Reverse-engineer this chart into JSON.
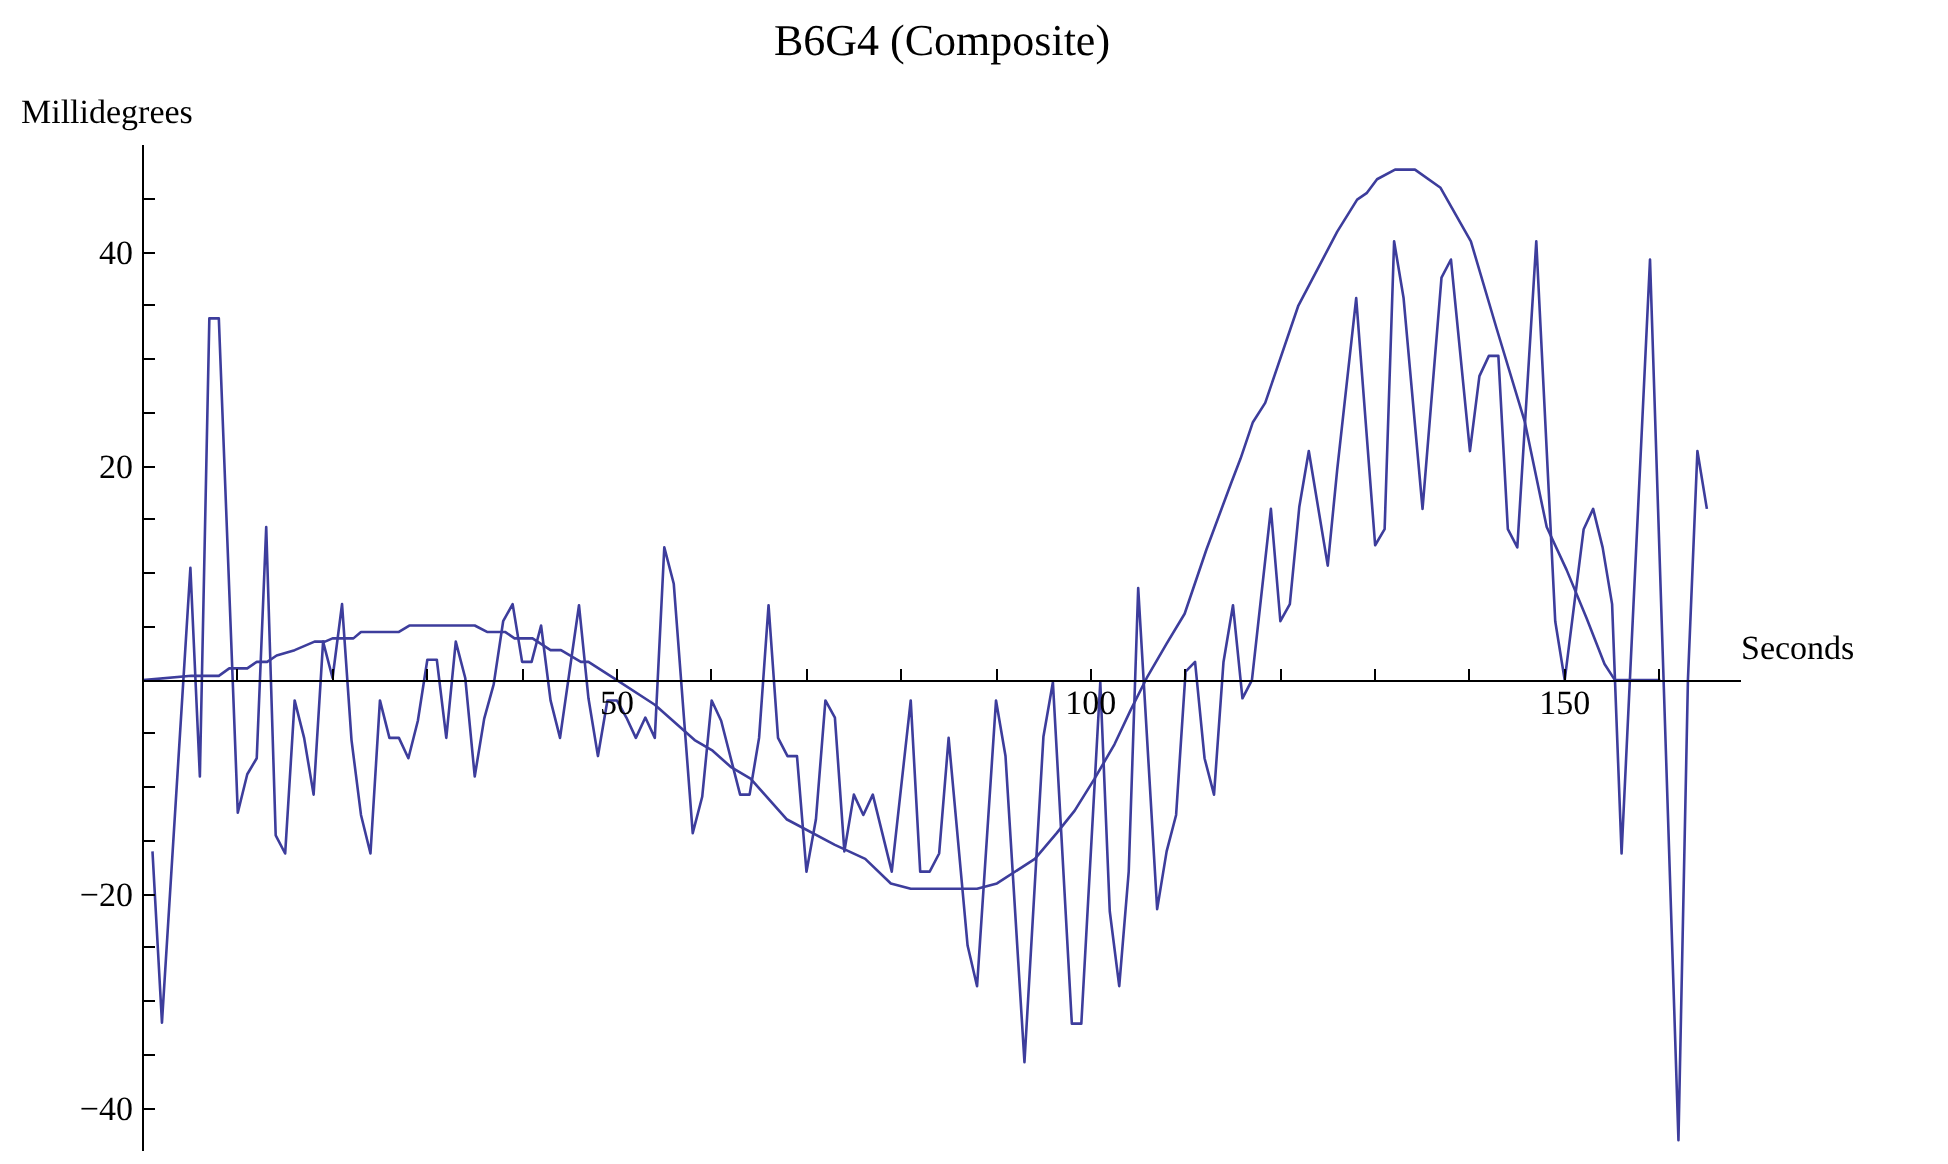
{
  "chart_data": {
    "type": "line",
    "title": "B6G4 (Composite)",
    "xlabel": "Seconds",
    "ylabel": "Millidegrees",
    "xlim": [
      0,
      168.6
    ],
    "ylim": [
      -44,
      50
    ],
    "xticks": [
      {
        "value": 10,
        "label": null
      },
      {
        "value": 20,
        "label": null
      },
      {
        "value": 30,
        "label": null
      },
      {
        "value": 40,
        "label": null
      },
      50,
      {
        "value": 60,
        "label": null
      },
      {
        "value": 70,
        "label": null
      },
      {
        "value": 80,
        "label": null
      },
      {
        "value": 90,
        "label": null
      },
      100,
      {
        "value": 110,
        "label": null
      },
      {
        "value": 120,
        "label": null
      },
      {
        "value": 130,
        "label": null
      },
      {
        "value": 140,
        "label": null
      },
      150,
      {
        "value": 160,
        "label": null
      }
    ],
    "yticks": [
      -40,
      {
        "value": -35,
        "label": null
      },
      {
        "value": -30,
        "label": null
      },
      {
        "value": -25,
        "label": null
      },
      -20,
      {
        "value": -15,
        "label": null
      },
      {
        "value": -10,
        "label": null
      },
      {
        "value": -5,
        "label": null
      },
      {
        "value": 5,
        "label": null
      },
      {
        "value": 10,
        "label": null
      },
      {
        "value": 15,
        "label": null
      },
      20,
      {
        "value": 25,
        "label": null
      },
      {
        "value": 30,
        "label": null
      },
      {
        "value": 35,
        "label": null
      },
      40,
      {
        "value": 45,
        "label": null
      }
    ],
    "grid": false,
    "marker": "none",
    "line_style": "solid",
    "series": [
      {
        "color": "#3d3d9c",
        "x": [
          1,
          2,
          5,
          6,
          7,
          8,
          10,
          11,
          12,
          13,
          14,
          15,
          16,
          17,
          18,
          19,
          20,
          21,
          22,
          23,
          24,
          25,
          26,
          27,
          28,
          29,
          30,
          31,
          32,
          33,
          34,
          35,
          36,
          37,
          38,
          39,
          40,
          41,
          42,
          43,
          44,
          46,
          47,
          48,
          49,
          50,
          51,
          52,
          53,
          54,
          55,
          56,
          58,
          59,
          60,
          61,
          63,
          64,
          65,
          66,
          67,
          68,
          69,
          70,
          71,
          72,
          73,
          74,
          75,
          76,
          77,
          79,
          81,
          82,
          83,
          84,
          85,
          87,
          88,
          90,
          91,
          93,
          95,
          96,
          98,
          99,
          101,
          102,
          103,
          104,
          105,
          107,
          108,
          109,
          110,
          111,
          112,
          113,
          114,
          115,
          116,
          117,
          119,
          120,
          121,
          122,
          123,
          125,
          126,
          128,
          130,
          131,
          132,
          133,
          135,
          137,
          138,
          140,
          141,
          142,
          143,
          144,
          145,
          147,
          149,
          150,
          152,
          153,
          154,
          155,
          156,
          159,
          162,
          163,
          164,
          165
        ],
        "values": [
          -16,
          -32,
          10.5,
          -9,
          33.8,
          33.8,
          -12.4,
          -8.8,
          -7.3,
          14.3,
          -14.5,
          -16.2,
          -1.9,
          -5.4,
          -10.7,
          3.6,
          0.2,
          7.1,
          -5.6,
          -12.6,
          -16.2,
          -1.9,
          -5.4,
          -5.4,
          -7.3,
          -3.8,
          1.9,
          1.9,
          -5.4,
          3.6,
          0.2,
          -9,
          -3.6,
          -0.4,
          5.5,
          7.1,
          1.7,
          1.7,
          5.1,
          -1.9,
          -5.4,
          7,
          -1.7,
          -7.1,
          -1.9,
          -1.9,
          -3.5,
          -5.4,
          -3.5,
          -5.4,
          12.4,
          9,
          -14.3,
          -10.9,
          -1.9,
          -3.8,
          -10.7,
          -10.7,
          -5.4,
          7,
          -5.4,
          -7.1,
          -7.1,
          -17.9,
          -13,
          -1.9,
          -3.5,
          -16,
          -10.7,
          -12.6,
          -10.7,
          -17.9,
          -1.9,
          -17.9,
          -17.9,
          -16.2,
          -5.4,
          -24.8,
          -28.6,
          -1.9,
          -7.1,
          -35.7,
          -5.3,
          -0.2,
          -32.1,
          -32.1,
          -0.2,
          -21.6,
          -28.6,
          -17.9,
          8.6,
          -21.4,
          -16,
          -12.6,
          0.8,
          1.7,
          -7.3,
          -10.7,
          1.7,
          7,
          -1.7,
          0,
          16,
          5.5,
          7.1,
          16.2,
          21.4,
          10.7,
          19.7,
          35.7,
          12.6,
          14.1,
          41,
          35.7,
          16,
          37.6,
          39.3,
          21.4,
          28.4,
          30.3,
          30.3,
          14.1,
          12.4,
          41,
          5.5,
          0,
          14.1,
          16,
          12.4,
          7.1,
          -16.2,
          39.3,
          -43,
          0,
          21.4,
          16
        ]
      },
      {
        "color": "#3d3d9c",
        "x": [
          0,
          5.1,
          8,
          9.1,
          11,
          12,
          13.1,
          14.1,
          16,
          18.1,
          19.2,
          20,
          22.2,
          23,
          27,
          28.1,
          35,
          36.3,
          38.2,
          39.2,
          41.1,
          43,
          44.1,
          46.2,
          47,
          50,
          54,
          58.2,
          60.1,
          62,
          64.1,
          67.9,
          73,
          76.2,
          78.9,
          81,
          88,
          90.1,
          94.1,
          96.4,
          98.3,
          100.4,
          102.5,
          104.2,
          105.9,
          108,
          109.9,
          112.2,
          114.8,
          115.8,
          117.1,
          118.4,
          121.9,
          126,
          128.1,
          129.1,
          130.2,
          132.1,
          134.2,
          136.9,
          140.1,
          142.8,
          145.8,
          148.1,
          150.2,
          152.3,
          154.2,
          155.3,
          160.1
        ],
        "values": [
          0,
          0.4,
          0.4,
          1.1,
          1.1,
          1.7,
          1.7,
          2.3,
          2.8,
          3.6,
          3.6,
          3.9,
          3.9,
          4.5,
          4.5,
          5.1,
          5.1,
          4.5,
          4.5,
          3.9,
          3.9,
          2.8,
          2.8,
          1.7,
          1.7,
          0,
          -2.3,
          -5.6,
          -6.6,
          -8.1,
          -9.2,
          -13,
          -15.4,
          -16.7,
          -19,
          -19.5,
          -19.5,
          -19,
          -16.7,
          -14.3,
          -12.2,
          -9.2,
          -6,
          -2.8,
          0.2,
          3.4,
          6.2,
          12.2,
          18.4,
          20.7,
          24.1,
          25.9,
          35,
          41.9,
          44.9,
          45.5,
          46.8,
          47.7,
          47.7,
          46,
          41,
          32.9,
          24.1,
          14.3,
          10.3,
          5.8,
          1.5,
          0,
          0
        ]
      }
    ]
  }
}
